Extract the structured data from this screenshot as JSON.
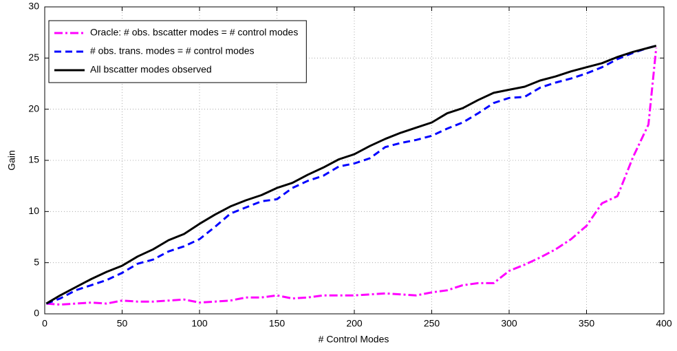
{
  "chart_data": {
    "type": "line",
    "xlabel": "# Control Modes",
    "ylabel": "Gain",
    "x": [
      1,
      10,
      20,
      30,
      40,
      50,
      60,
      70,
      80,
      90,
      100,
      110,
      120,
      130,
      140,
      150,
      160,
      170,
      180,
      190,
      200,
      210,
      220,
      230,
      240,
      250,
      260,
      270,
      280,
      290,
      300,
      310,
      320,
      330,
      340,
      350,
      360,
      370,
      380,
      390,
      395
    ],
    "series": [
      {
        "name": "Oracle: # obs. bscatter modes  = # control modes",
        "color": "#ff00ff",
        "style": "dashdot",
        "values": [
          1.0,
          0.9,
          1.0,
          1.1,
          1.0,
          1.3,
          1.2,
          1.2,
          1.3,
          1.4,
          1.1,
          1.2,
          1.3,
          1.6,
          1.6,
          1.8,
          1.5,
          1.6,
          1.8,
          1.8,
          1.8,
          1.9,
          2.0,
          1.9,
          1.8,
          2.1,
          2.3,
          2.8,
          3.0,
          3.0,
          4.2,
          4.8,
          5.5,
          6.3,
          7.3,
          8.6,
          10.8,
          11.5,
          15.3,
          18.5,
          26.0
        ]
      },
      {
        "name": "# obs. trans. modes  = # control modes",
        "color": "#0000ff",
        "style": "dashed",
        "values": [
          1.0,
          1.5,
          2.3,
          2.8,
          3.3,
          4.0,
          4.9,
          5.3,
          6.1,
          6.6,
          7.3,
          8.5,
          9.8,
          10.4,
          11.0,
          11.2,
          12.3,
          13.0,
          13.5,
          14.4,
          14.7,
          15.2,
          16.3,
          16.7,
          17.0,
          17.4,
          18.1,
          18.7,
          19.6,
          20.6,
          21.1,
          21.2,
          22.1,
          22.6,
          23.0,
          23.5,
          24.1,
          24.9,
          25.5,
          26.0,
          26.2
        ]
      },
      {
        "name": "All bscatter modes observed",
        "color": "#000000",
        "style": "solid",
        "values": [
          1.0,
          1.8,
          2.6,
          3.4,
          4.1,
          4.7,
          5.6,
          6.3,
          7.2,
          7.8,
          8.8,
          9.7,
          10.5,
          11.1,
          11.6,
          12.3,
          12.8,
          13.6,
          14.3,
          15.1,
          15.6,
          16.4,
          17.1,
          17.7,
          18.2,
          18.7,
          19.6,
          20.1,
          20.9,
          21.6,
          21.9,
          22.2,
          22.8,
          23.2,
          23.7,
          24.1,
          24.5,
          25.1,
          25.6,
          26.0,
          26.2
        ]
      }
    ],
    "xlim": [
      0,
      400
    ],
    "xticks": [
      0,
      50,
      100,
      150,
      200,
      250,
      300,
      350,
      400
    ],
    "ylim": [
      0,
      30
    ],
    "yticks": [
      0,
      5,
      10,
      15,
      20,
      25,
      30
    ],
    "grid": true,
    "legend": "northwest"
  }
}
